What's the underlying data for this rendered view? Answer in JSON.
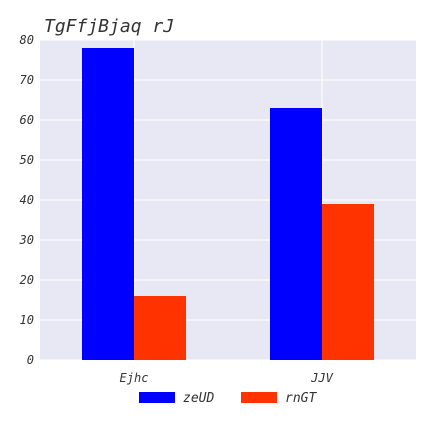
{
  "chart_data": {
    "type": "bar",
    "title": "TgFfjBjaq rJ",
    "xlabel": "",
    "ylabel": "",
    "categories": [
      "Ejhc",
      "JJV"
    ],
    "series": [
      {
        "name": "zeUD",
        "color": "#0000ff",
        "values": [
          78,
          63
        ]
      },
      {
        "name": "rnGT",
        "color": "#ff3300",
        "values": [
          16,
          39
        ]
      }
    ],
    "ylim": [
      0,
      80
    ],
    "yticks": [
      0,
      10,
      20,
      30,
      40,
      50,
      60,
      70,
      80
    ],
    "grid": true,
    "legend": "bottom-center",
    "plot_background": "#e8e8f4",
    "grid_color": "#ffffff"
  }
}
